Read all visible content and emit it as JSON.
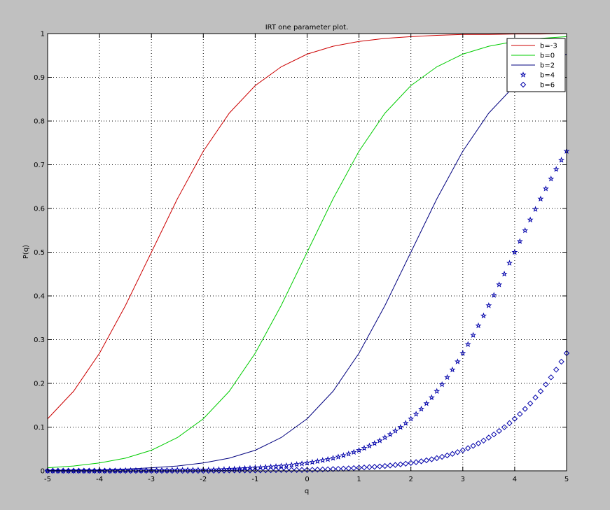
{
  "chart_data": {
    "type": "line",
    "title": "IRT one parameter plot.",
    "xlabel": "q",
    "ylabel": "P(q)",
    "xlim": [
      -5,
      5
    ],
    "ylim": [
      0,
      1
    ],
    "x_ticks": [
      -5,
      -4,
      -3,
      -2,
      -1,
      0,
      1,
      2,
      3,
      4,
      5
    ],
    "x_tick_labels": [
      "-5",
      "-4",
      "-3",
      "-2",
      "-1",
      "0",
      "1",
      "2",
      "3",
      "4",
      "5"
    ],
    "y_ticks": [
      0,
      0.1,
      0.2,
      0.3,
      0.4,
      0.5,
      0.6,
      0.7,
      0.8,
      0.9,
      1
    ],
    "y_tick_labels": [
      "0",
      "0.1",
      "0.2",
      "0.3",
      "0.4",
      "0.5",
      "0.6",
      "0.7",
      "0.8",
      "0.9",
      "1"
    ],
    "grid": true,
    "legend_position": "top-right",
    "x": [
      -5,
      -4.5,
      -4,
      -3.5,
      -3,
      -2.5,
      -2,
      -1.5,
      -1,
      -0.5,
      0,
      0.5,
      1,
      1.5,
      2,
      2.5,
      3,
      3.5,
      4,
      4.5,
      5
    ],
    "series": [
      {
        "name": "b=-3",
        "style": "line",
        "color": "#cc0000",
        "values": [
          0.119,
          0.182,
          0.269,
          0.378,
          0.5,
          0.622,
          0.731,
          0.818,
          0.881,
          0.924,
          0.953,
          0.971,
          0.982,
          0.989,
          0.993,
          0.996,
          0.998,
          0.998,
          0.999,
          0.999,
          1.0
        ]
      },
      {
        "name": "b=0",
        "style": "line",
        "color": "#00cc00",
        "values": [
          0.007,
          0.011,
          0.018,
          0.029,
          0.047,
          0.076,
          0.119,
          0.182,
          0.269,
          0.378,
          0.5,
          0.622,
          0.731,
          0.818,
          0.881,
          0.924,
          0.953,
          0.971,
          0.982,
          0.989,
          0.993
        ]
      },
      {
        "name": "b=2",
        "style": "line",
        "color": "#00007f",
        "values": [
          0.001,
          0.002,
          0.002,
          0.004,
          0.007,
          0.011,
          0.018,
          0.029,
          0.047,
          0.076,
          0.119,
          0.182,
          0.269,
          0.378,
          0.5,
          0.622,
          0.731,
          0.818,
          0.881,
          0.924,
          0.953
        ]
      },
      {
        "name": "b=4",
        "style": "pentagram",
        "color": "#0000aa",
        "values": [
          0.0,
          0.0,
          0.0,
          0.001,
          0.001,
          0.002,
          0.002,
          0.004,
          0.007,
          0.011,
          0.018,
          0.029,
          0.047,
          0.076,
          0.119,
          0.182,
          0.269,
          0.378,
          0.5,
          0.622,
          0.731
        ]
      },
      {
        "name": "b=6",
        "style": "diamond",
        "color": "#0000aa",
        "values": [
          0.0,
          0.0,
          0.0,
          0.0,
          0.0,
          0.0,
          0.0,
          0.001,
          0.001,
          0.002,
          0.002,
          0.004,
          0.007,
          0.011,
          0.018,
          0.029,
          0.047,
          0.076,
          0.119,
          0.182,
          0.269
        ]
      }
    ]
  }
}
